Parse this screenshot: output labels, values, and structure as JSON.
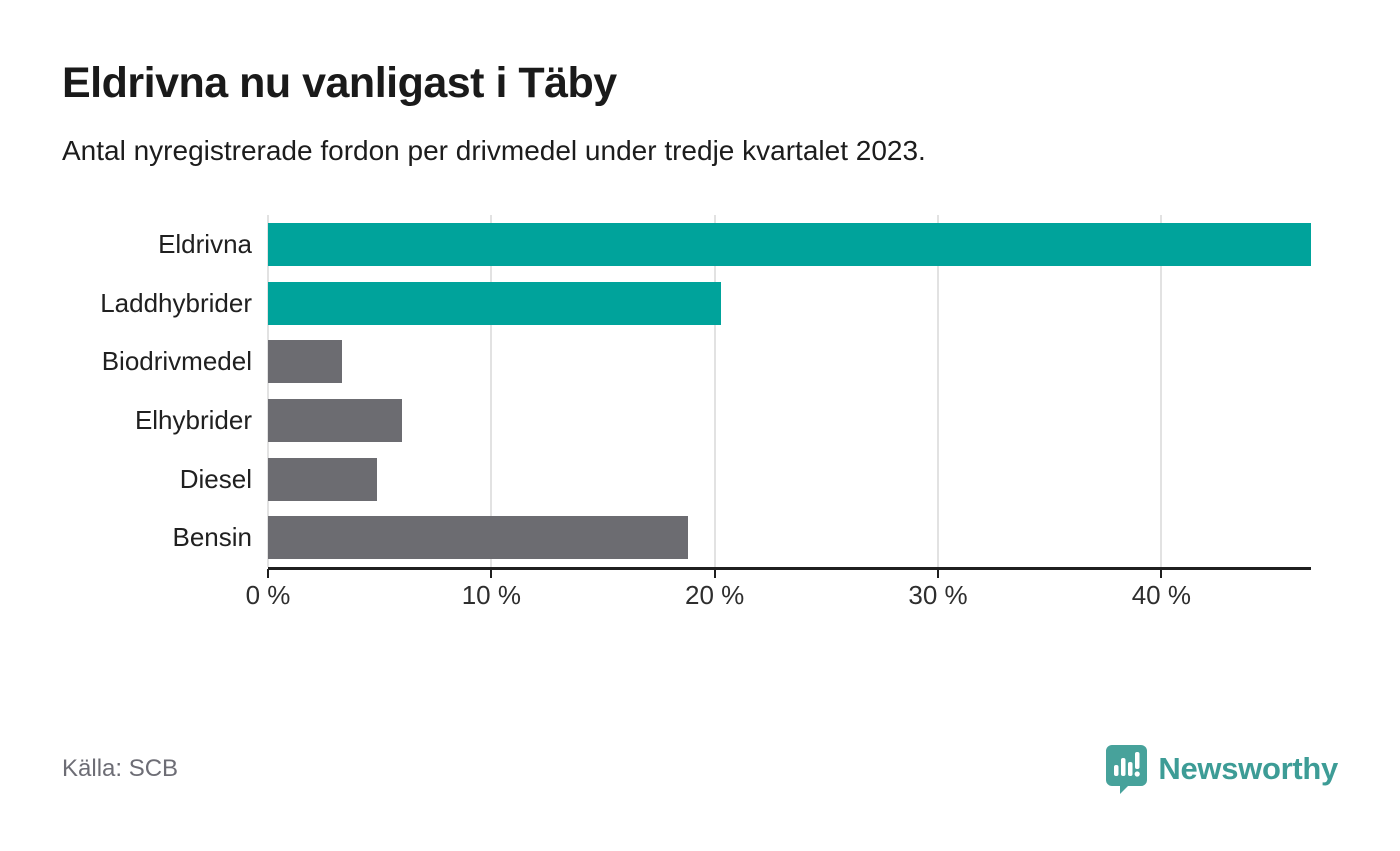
{
  "header": {
    "title": "Eldrivna nu vanligast i Täby",
    "subtitle": "Antal nyregistrerade fordon per drivmedel under tredje kvartalet 2023."
  },
  "chart_data": {
    "type": "bar",
    "orientation": "horizontal",
    "title": "Eldrivna nu vanligast i Täby",
    "subtitle": "Antal nyregistrerade fordon per drivmedel under tredje kvartalet 2023.",
    "categories": [
      "Eldrivna",
      "Laddhybrider",
      "Biodrivmedel",
      "Elhybrider",
      "Diesel",
      "Bensin"
    ],
    "values": [
      46.7,
      20.3,
      3.3,
      6.0,
      4.9,
      18.8
    ],
    "unit": "%",
    "bar_colors": [
      "#00a39b",
      "#00a39b",
      "#6c6c71",
      "#6c6c71",
      "#6c6c71",
      "#6c6c71"
    ],
    "highlight_color": "#00a39b",
    "default_color": "#6c6c71",
    "xlabel": "",
    "ylabel": "",
    "xlim": [
      0,
      46.7
    ],
    "x_ticks": [
      0,
      10,
      20,
      30,
      40
    ],
    "x_tick_labels": [
      "0 %",
      "10 %",
      "20 %",
      "30 %",
      "40 %"
    ],
    "grid": true,
    "gridline_color": "#e2e2e2",
    "legend": false
  },
  "footer": {
    "source": "Källa: SCB",
    "brand": "Newsworthy",
    "brand_color": "#3d9c96"
  }
}
